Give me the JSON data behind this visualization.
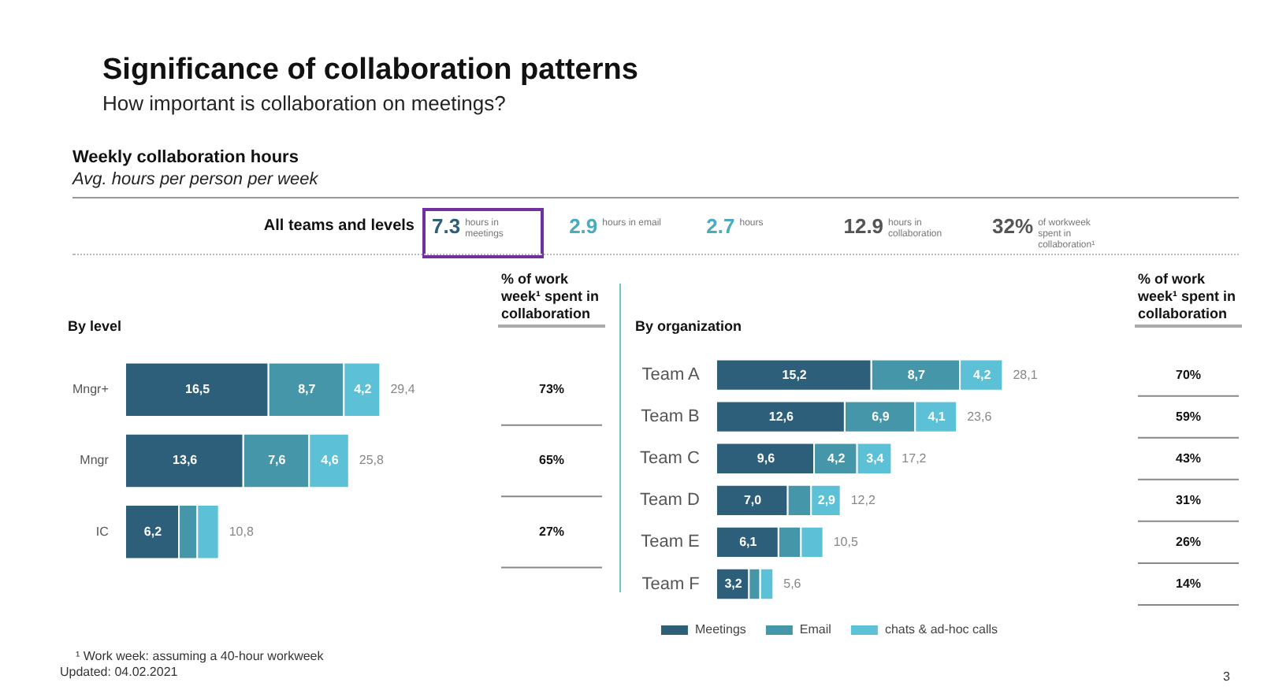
{
  "chart_data": [
    {
      "type": "other",
      "title": "Significance of collaboration patterns",
      "subtitle": "How important is collaboration on meetings?",
      "annotations": [
        "Weekly collaboration hours",
        "Avg. hours per person per week",
        "All teams and levels",
        "7.3 hours in meetings",
        "2.9 hours in email",
        "2.7 hours",
        "12.9 hours in collaboration",
        "32% of workweek spent in collaboration¹",
        "¹ Work week: assuming a 40-hour workweek",
        "Updated: 04.02.2021",
        "3"
      ]
    },
    {
      "type": "bar",
      "orientation": "horizontal",
      "stacked": true,
      "title": "By level",
      "categories": [
        "Mngr+",
        "Mngr",
        "IC"
      ],
      "series": [
        {
          "color": "#2d5f7b",
          "values": [
            16.5,
            13.6,
            6.2
          ],
          "value_labels": [
            "16,5",
            "13,6",
            "6,2"
          ]
        },
        {
          "color": "#4596a8",
          "values": [
            8.7,
            7.6,
            2.1
          ],
          "value_labels": [
            "8,7",
            "7,6",
            null
          ]
        },
        {
          "color": "#5cc0d6",
          "values": [
            4.2,
            4.6,
            2.5
          ],
          "value_labels": [
            "4,2",
            "4,6",
            null
          ]
        }
      ],
      "totals": [
        "29,4",
        "25,8",
        "10,8"
      ],
      "annotations": [
        "% of work week¹ spent in collaboration",
        "73%",
        "65%",
        "27%"
      ],
      "legend": false,
      "grid": false
    },
    {
      "type": "bar",
      "orientation": "horizontal",
      "stacked": true,
      "title": "By organization",
      "categories": [
        "Team A",
        "Team B",
        "Team C",
        "Team D",
        "Team E",
        "Team F"
      ],
      "series": [
        {
          "name": "Meetings",
          "color": "#2d5f7b",
          "values": [
            15.2,
            12.6,
            9.6,
            7.0,
            6.1,
            3.2
          ],
          "value_labels": [
            "15,2",
            "12,6",
            "9,6",
            "7,0",
            "6,1",
            "3,2"
          ]
        },
        {
          "name": "Email",
          "color": "#4596a8",
          "values": [
            8.7,
            6.9,
            4.2,
            2.3,
            2.2,
            1.1
          ],
          "value_labels": [
            "8,7",
            "6,9",
            "4,2",
            null,
            null,
            null
          ]
        },
        {
          "name": "chats & ad-hoc calls",
          "color": "#5cc0d6",
          "values": [
            4.2,
            4.1,
            3.4,
            2.9,
            2.2,
            1.3
          ],
          "value_labels": [
            "4,2",
            "4,1",
            "3,4",
            "2,9",
            null,
            null
          ]
        }
      ],
      "totals": [
        "28,1",
        "23,6",
        "17,2",
        "12,2",
        "10,5",
        "5,6"
      ],
      "annotations": [
        "% of work week¹ spent in collaboration",
        "70%",
        "59%",
        "43%",
        "31%",
        "26%",
        "14%"
      ],
      "legend": "bottom",
      "grid": false
    }
  ]
}
